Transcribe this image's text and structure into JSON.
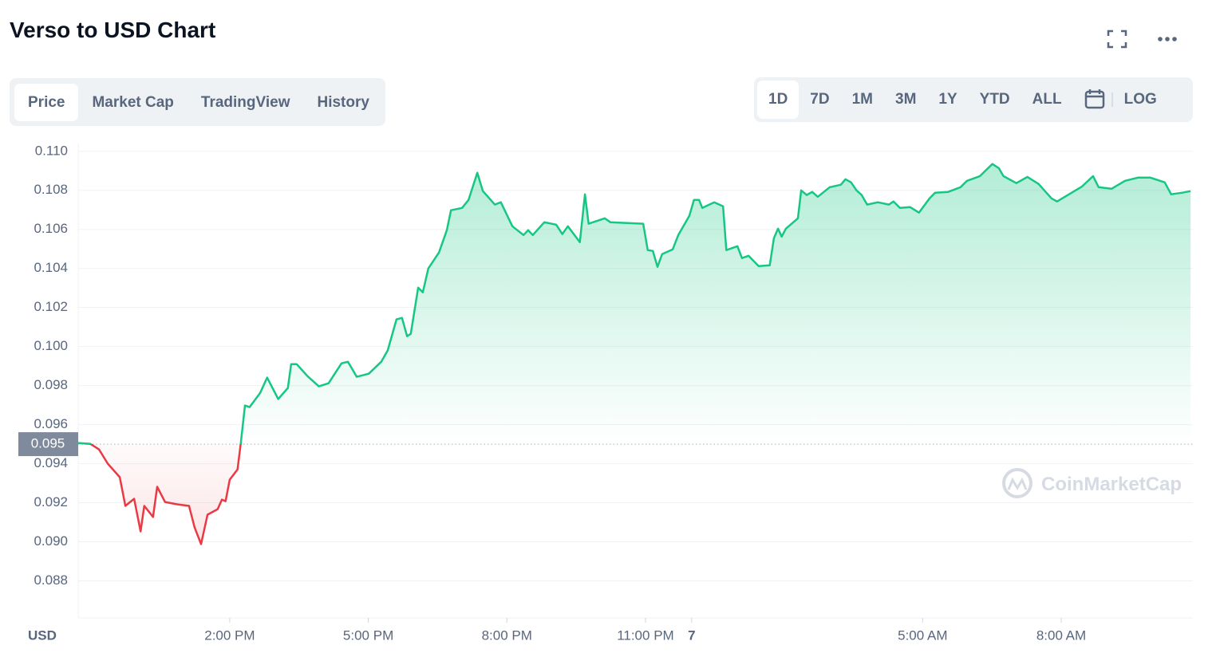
{
  "chart_data": {
    "type": "line",
    "title": "Verso to USD Chart",
    "tabs": [
      "Price",
      "Market Cap",
      "TradingView",
      "History"
    ],
    "ranges": [
      "1D",
      "7D",
      "1M",
      "3M",
      "1Y",
      "YTD",
      "ALL"
    ],
    "scale_button": "LOG",
    "y_axis_label": "USD",
    "watermark": "CoinMarketCap",
    "baseline": 0.095,
    "baseline_label": "0.095",
    "up_color": "#16c784",
    "down_color": "#ea3943",
    "xlim": [
      10.72,
      34.85
    ],
    "xticks": [
      {
        "value": 14,
        "label": "2:00 PM"
      },
      {
        "value": 17,
        "label": "5:00 PM"
      },
      {
        "value": 20,
        "label": "8:00 PM"
      },
      {
        "value": 23,
        "label": "11:00 PM"
      },
      {
        "value": 24,
        "label": "7"
      },
      {
        "value": 29,
        "label": "5:00 AM"
      },
      {
        "value": 32,
        "label": "8:00 AM"
      }
    ],
    "ylim": [
      0.0861,
      0.1104
    ],
    "yticks": [
      {
        "value": 0.11,
        "label": "0.110"
      },
      0.108,
      0.106,
      0.104,
      0.102,
      {
        "value": 0.1,
        "label": "0.100"
      },
      0.098,
      0.096,
      0.094,
      0.092,
      {
        "value": 0.09,
        "label": "0.090"
      },
      0.088
    ],
    "grid": true,
    "x": [
      10.72,
      10.98,
      11.17,
      11.36,
      11.62,
      11.74,
      11.93,
      12.07,
      12.15,
      12.34,
      12.43,
      12.6,
      12.86,
      13.12,
      13.24,
      13.38,
      13.52,
      13.74,
      13.83,
      13.91,
      14.0,
      14.17,
      14.24,
      14.33,
      14.43,
      14.66,
      14.81,
      15.05,
      15.26,
      15.33,
      15.45,
      15.68,
      15.93,
      16.14,
      16.42,
      16.56,
      16.75,
      17.01,
      17.28,
      17.42,
      17.61,
      17.73,
      17.84,
      17.92,
      18.08,
      18.18,
      18.3,
      18.53,
      18.7,
      18.79,
      19.03,
      19.17,
      19.36,
      19.48,
      19.74,
      19.87,
      20.12,
      20.36,
      20.46,
      20.56,
      20.81,
      21.07,
      21.2,
      21.32,
      21.58,
      21.69,
      21.77,
      22.12,
      22.24,
      22.95,
      23.05,
      23.16,
      23.26,
      23.36,
      23.59,
      23.71,
      23.95,
      24.05,
      24.16,
      24.23,
      24.49,
      24.68,
      24.75,
      24.99,
      25.09,
      25.23,
      25.45,
      25.69,
      25.78,
      25.87,
      25.95,
      26.04,
      26.3,
      26.37,
      26.49,
      26.61,
      26.73,
      26.99,
      27.23,
      27.33,
      27.45,
      27.57,
      27.68,
      27.8,
      28.03,
      28.27,
      28.37,
      28.51,
      28.73,
      28.92,
      29.15,
      29.27,
      29.55,
      29.82,
      29.96,
      30.24,
      30.51,
      30.65,
      30.75,
      31.03,
      31.27,
      31.51,
      31.79,
      31.91,
      32.17,
      32.45,
      32.69,
      32.81,
      33.09,
      33.38,
      33.66,
      33.93,
      34.24,
      34.38,
      34.62,
      34.8
    ],
    "series": [
      {
        "name": "Price",
        "values": [
          0.09506,
          0.09502,
          0.09473,
          0.094,
          0.09331,
          0.09184,
          0.0922,
          0.09053,
          0.09184,
          0.09127,
          0.09282,
          0.09204,
          0.09192,
          0.09184,
          0.09073,
          0.08988,
          0.09139,
          0.09167,
          0.09216,
          0.09208,
          0.09318,
          0.09371,
          0.09506,
          0.09698,
          0.0969,
          0.09763,
          0.09841,
          0.09731,
          0.09788,
          0.0991,
          0.0991,
          0.09849,
          0.09796,
          0.09812,
          0.09914,
          0.09922,
          0.09845,
          0.09861,
          0.09922,
          0.0998,
          0.10139,
          0.10147,
          0.10053,
          0.10065,
          0.10302,
          0.10278,
          0.104,
          0.10482,
          0.10596,
          0.10698,
          0.1071,
          0.10751,
          0.1089,
          0.10796,
          0.10727,
          0.10739,
          0.10616,
          0.10571,
          0.10596,
          0.10571,
          0.10637,
          0.10624,
          0.10576,
          0.10616,
          0.10535,
          0.1078,
          0.10629,
          0.10657,
          0.10637,
          0.10629,
          0.10494,
          0.1049,
          0.10408,
          0.10473,
          0.10498,
          0.10571,
          0.10669,
          0.10751,
          0.10751,
          0.1071,
          0.10739,
          0.10718,
          0.10494,
          0.10514,
          0.10453,
          0.10465,
          0.10412,
          0.10416,
          0.10555,
          0.10604,
          0.10563,
          0.10604,
          0.10657,
          0.108,
          0.10776,
          0.10792,
          0.10767,
          0.10816,
          0.10829,
          0.10857,
          0.10841,
          0.108,
          0.10776,
          0.10727,
          0.10739,
          0.10727,
          0.10743,
          0.1071,
          0.10714,
          0.10686,
          0.10759,
          0.10788,
          0.10792,
          0.10816,
          0.10849,
          0.10873,
          0.10935,
          0.10914,
          0.10873,
          0.10837,
          0.10869,
          0.10833,
          0.10759,
          0.10743,
          0.1078,
          0.1082,
          0.10873,
          0.10816,
          0.10808,
          0.10849,
          0.10865,
          0.10865,
          0.10841,
          0.1078,
          0.10788,
          0.10796
        ]
      }
    ]
  }
}
